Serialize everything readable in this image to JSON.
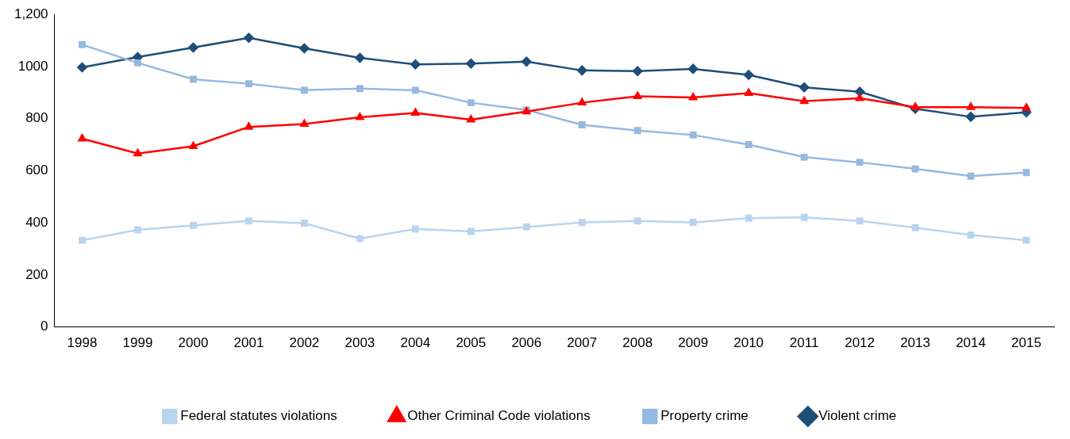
{
  "chart_data": {
    "type": "line",
    "categories": [
      "1998",
      "1999",
      "2000",
      "2001",
      "2002",
      "2003",
      "2004",
      "2005",
      "2006",
      "2007",
      "2008",
      "2009",
      "2010",
      "2011",
      "2012",
      "2013",
      "2014",
      "2015"
    ],
    "series": [
      {
        "name": "Violent crime",
        "color": "#1f4e79",
        "marker": "diamond",
        "values": [
          997,
          1036,
          1073,
          1110,
          1070,
          1033,
          1008,
          1011,
          1019,
          985,
          982,
          991,
          968,
          920,
          903,
          838,
          807,
          824
        ]
      },
      {
        "name": "Property crime",
        "color": "#95b9e0",
        "marker": "square",
        "values": [
          1084,
          1014,
          951,
          934,
          909,
          915,
          909,
          861,
          833,
          776,
          754,
          737,
          700,
          652,
          632,
          607,
          579,
          593
        ]
      },
      {
        "name": "Other Criminal Code violations",
        "color": "#ff0000",
        "marker": "triangle",
        "values": [
          723,
          666,
          694,
          768,
          779,
          805,
          822,
          796,
          827,
          861,
          886,
          881,
          898,
          867,
          878,
          844,
          844,
          841
        ]
      },
      {
        "name": "Federal statutes violations",
        "color": "#b8d4ee",
        "marker": "square",
        "values": [
          333,
          373,
          390,
          407,
          398,
          339,
          376,
          367,
          384,
          401,
          407,
          401,
          418,
          421,
          407,
          381,
          353,
          333
        ]
      }
    ],
    "ylim": [
      0,
      1200
    ],
    "yticks": [
      0,
      200,
      400,
      600,
      800,
      1000,
      {
        "value": 1200,
        "label": "1,200"
      }
    ],
    "grid": false,
    "legend": "bottom",
    "line_style": "solid"
  }
}
